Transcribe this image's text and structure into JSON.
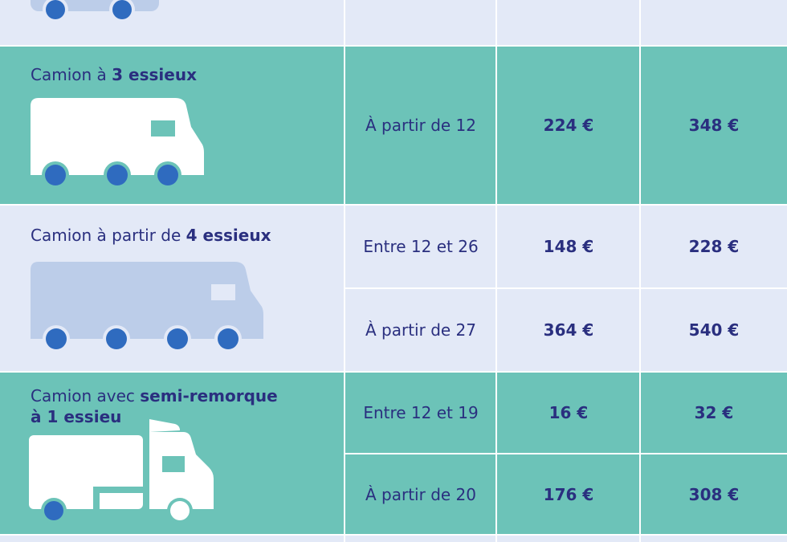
{
  "rows": [
    {
      "vehicle_label_prefix": "Camion à ",
      "vehicle_label_bold": "3 essieux",
      "icon": "truck-3-axles-icon",
      "brackets": [
        {
          "range": "À partir de 12",
          "price_a": "224 €",
          "price_b": "348 €"
        }
      ]
    },
    {
      "vehicle_label_prefix": "Camion à partir de ",
      "vehicle_label_bold": "4 essieux",
      "icon": "truck-4-axles-icon",
      "brackets": [
        {
          "range": "Entre 12 et 26",
          "price_a": "148 €",
          "price_b": "228 €"
        },
        {
          "range": "À partir de 27",
          "price_a": "364 €",
          "price_b": "540 €"
        }
      ]
    },
    {
      "vehicle_label_prefix": "Camion avec ",
      "vehicle_label_bold": "semi-remorque",
      "vehicle_label_bold_line2": "à 1 essieu",
      "icon": "semi-trailer-truck-icon",
      "brackets": [
        {
          "range": "Entre 12 et 19",
          "price_a": "16 €",
          "price_b": "32 €"
        },
        {
          "range": "À partir de 20",
          "price_a": "176 €",
          "price_b": "308 €"
        }
      ]
    }
  ],
  "colors": {
    "light_row": "#e3e9f7",
    "teal_row": "#6cc3b8",
    "text": "#2a2f7f",
    "light_truck": "#bccde9",
    "wheel": "#2f6bbf"
  }
}
